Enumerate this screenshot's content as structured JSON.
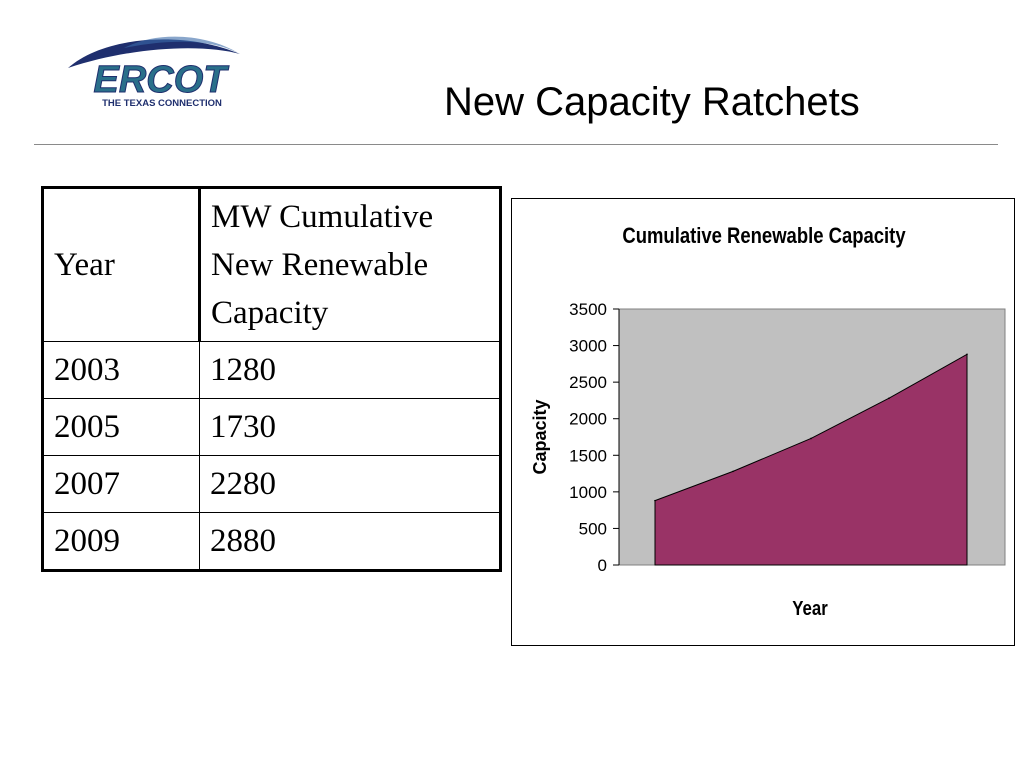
{
  "header": {
    "logo_text": "ERCOT",
    "logo_tagline": "THE TEXAS CONNECTION",
    "title": "New Capacity Ratchets",
    "logo_colors": {
      "swoosh": "#1f2f6e",
      "wordmark": "#2a6f8a"
    }
  },
  "table": {
    "headers": [
      "Year",
      "MW Cumulative New Renewable Capacity"
    ],
    "rows": [
      [
        "2003",
        "1280"
      ],
      [
        "2005",
        "1730"
      ],
      [
        "2007",
        "2280"
      ],
      [
        "2009",
        "2880"
      ]
    ]
  },
  "chart_data": {
    "type": "area",
    "title": "Cumulative Renewable Capacity",
    "xlabel": "Year",
    "ylabel": "Capacity",
    "x": [
      "",
      "",
      "",
      "",
      ""
    ],
    "values": [
      880,
      1280,
      1730,
      2280,
      2880
    ],
    "ylim": [
      0,
      3500
    ],
    "yticks": [
      "0",
      "500",
      "1000",
      "1500",
      "2000",
      "2500",
      "3000",
      "3500"
    ],
    "grid": false,
    "legend": "none",
    "colors": {
      "fill": "#993366",
      "plot_bg": "#c0c0c0"
    }
  }
}
